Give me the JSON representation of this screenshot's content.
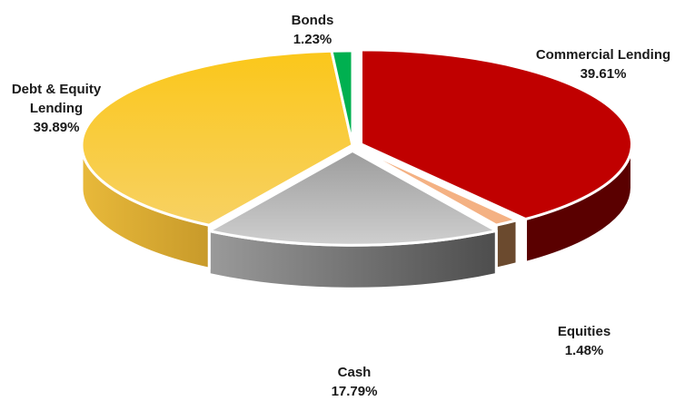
{
  "chart_data": {
    "type": "pie",
    "style": "3d-exploded",
    "title": "",
    "legend": "none",
    "slices": [
      {
        "name": "Commercial Lending",
        "value": 39.61,
        "label": "39.61%",
        "color": "#c00000"
      },
      {
        "name": "Equities",
        "value": 1.48,
        "label": "1.48%",
        "color": "#f4b183"
      },
      {
        "name": "Cash",
        "value": 17.79,
        "label": "17.79%",
        "color": "#b5b5b5"
      },
      {
        "name": "Debt & Equity Lending",
        "value": 39.89,
        "label": "39.89%",
        "color": "#f5c41d"
      },
      {
        "name": "Bonds",
        "value": 1.23,
        "label": "1.23%",
        "color": "#00b050"
      }
    ]
  }
}
